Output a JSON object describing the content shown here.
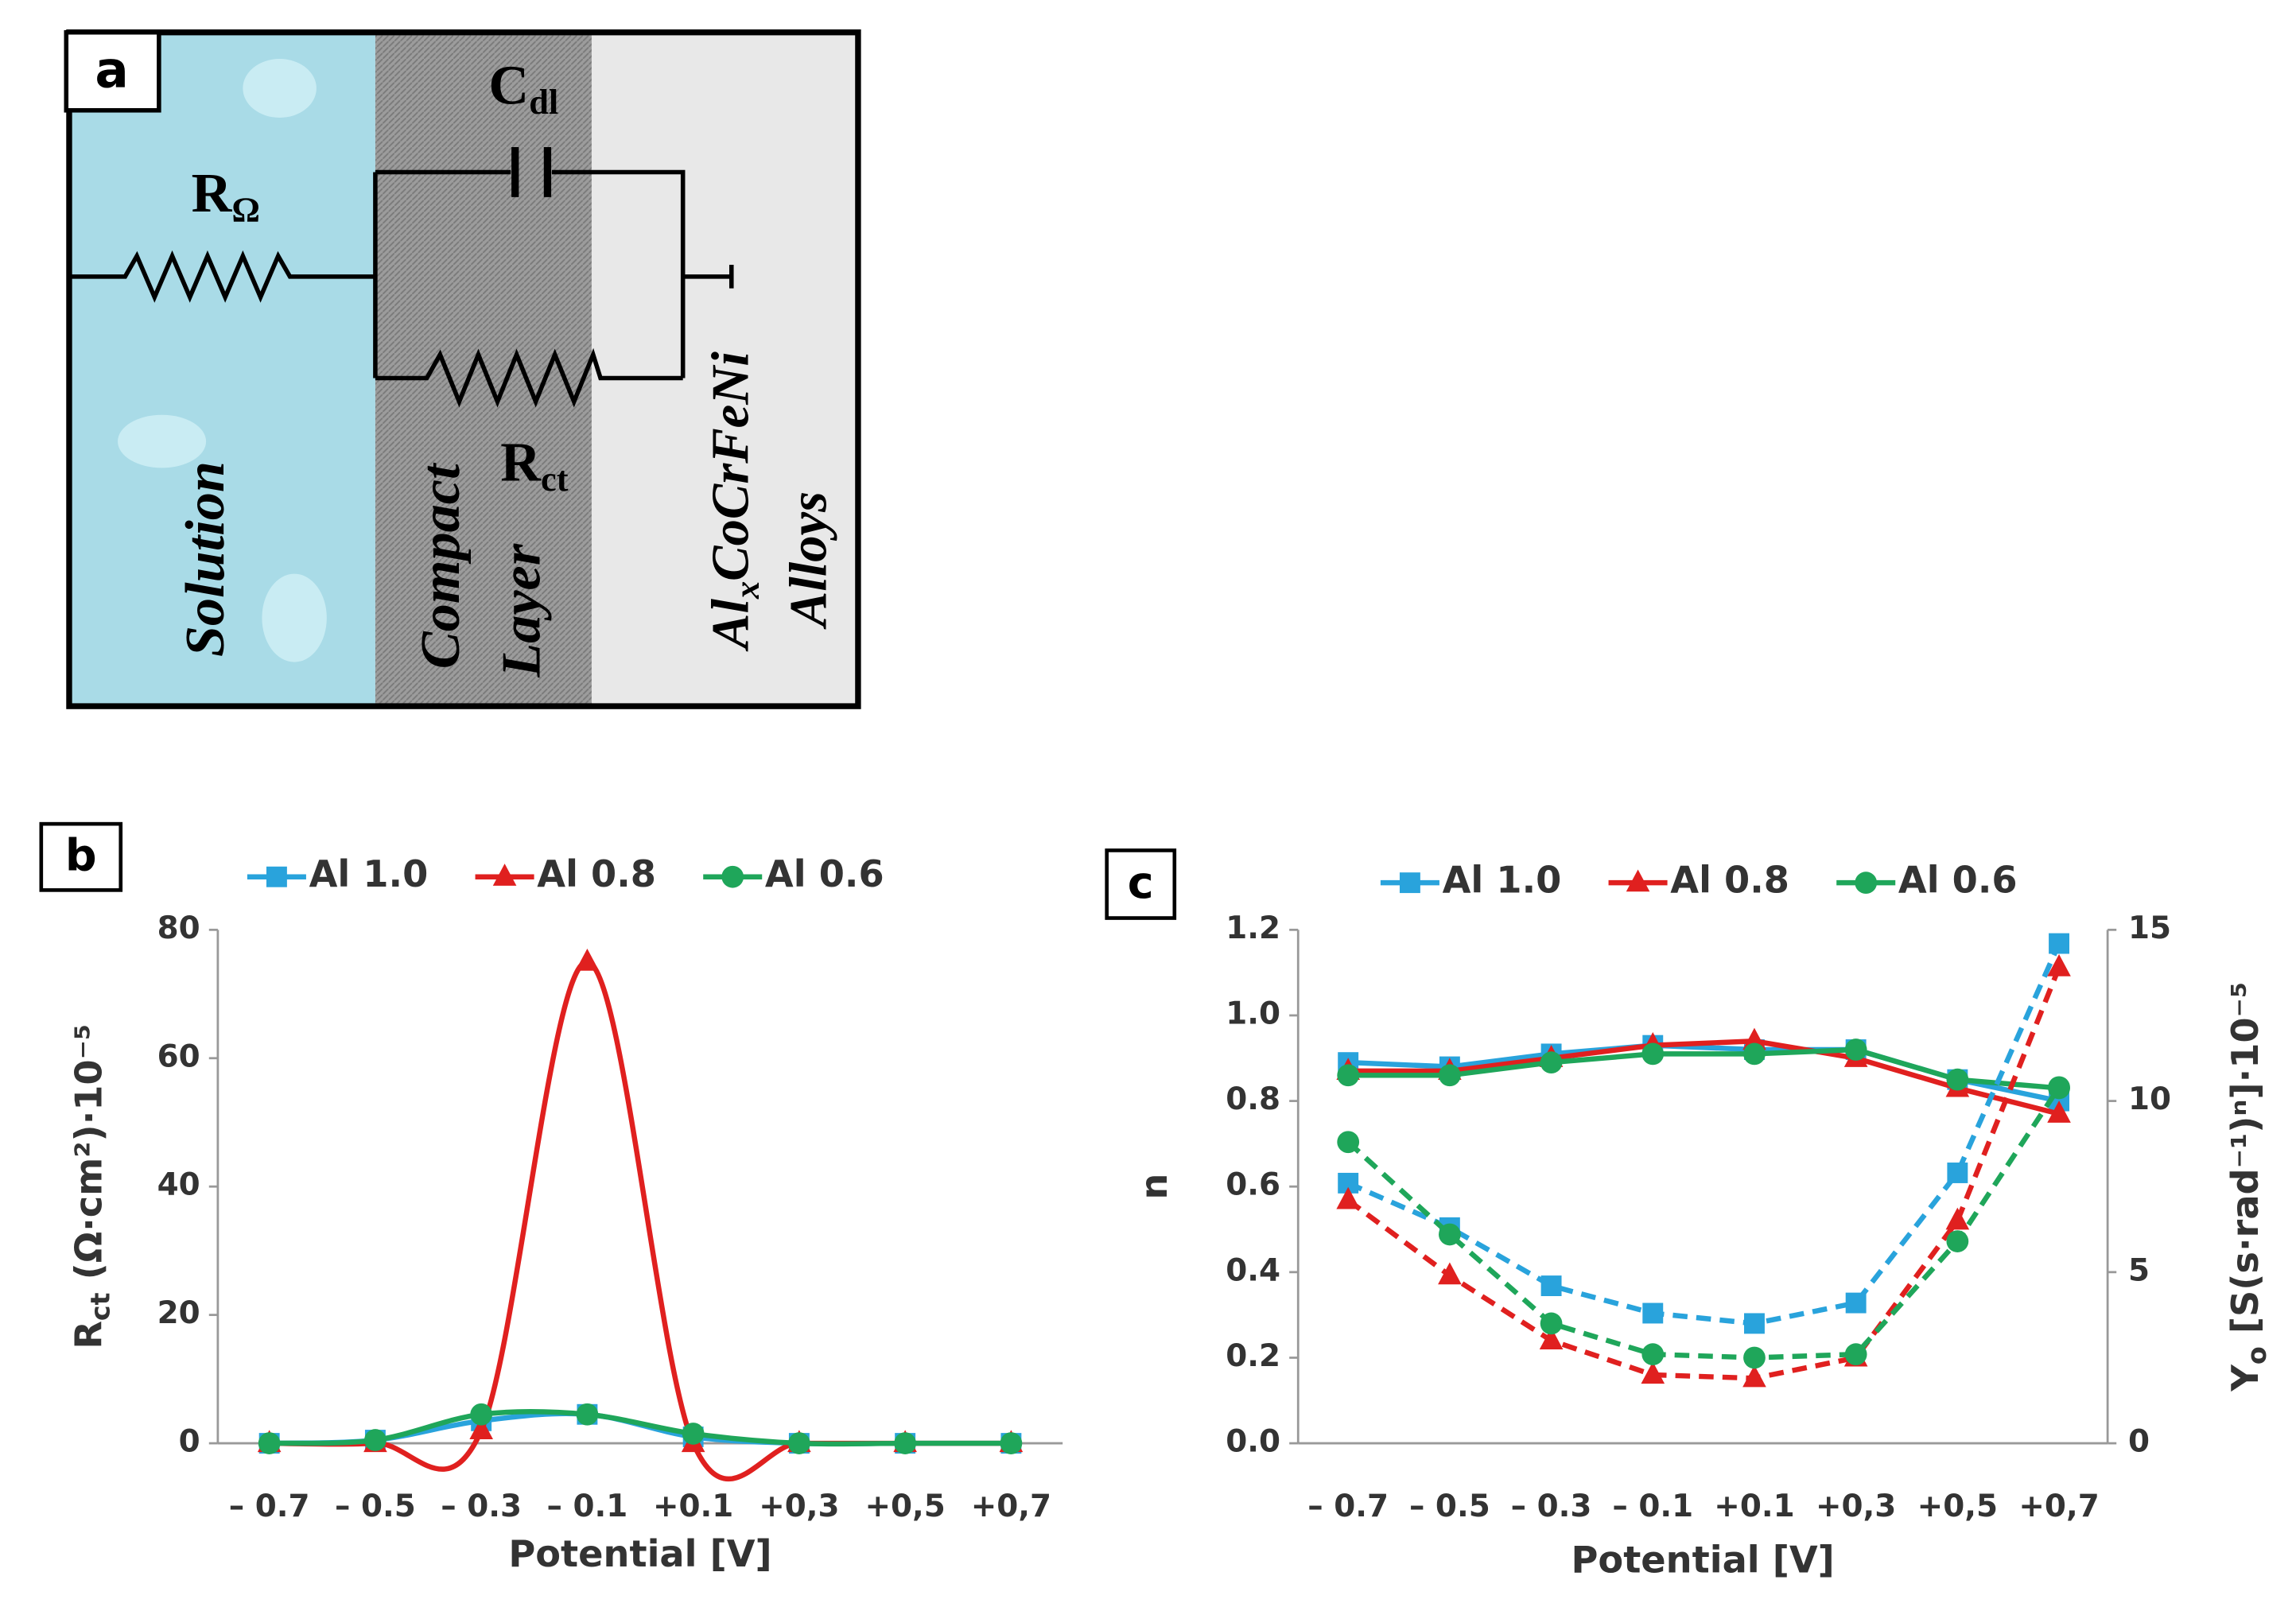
{
  "panel_a": {
    "label": "a",
    "cdl": {
      "main": "C",
      "sub": "dl"
    },
    "rohm": {
      "main": "R",
      "sub": "Ω"
    },
    "rct": {
      "main": "R",
      "sub": "ct"
    },
    "solution": "Solution",
    "compact": [
      "Compact",
      "Layer"
    ],
    "alloy": {
      "main": "Al",
      "sub": "x",
      "rest": "CoCrFeNi",
      "line2": "Alloys"
    }
  },
  "chart_data": [
    {
      "type": "line",
      "label": "b",
      "smooth": true,
      "categories": [
        "– 0.7",
        "– 0.5",
        "– 0.3",
        "– 0.1",
        "+0.1",
        "+0,3",
        "+0,5",
        "+0,7"
      ],
      "xlabel": "Potential [V]",
      "ylabel": {
        "main": "R",
        "sub": "ct",
        "rest": " (Ω·cm²)·10⁻⁵"
      },
      "ylim": [
        0,
        80
      ],
      "yticks": [
        0,
        20,
        40,
        60,
        80
      ],
      "series": [
        {
          "name": "Al 1.0",
          "color": "#29a3dc",
          "marker": "square",
          "values": [
            0,
            0.5,
            3.5,
            4.5,
            1,
            0,
            0,
            0
          ]
        },
        {
          "name": "Al 0.8",
          "color": "#e0201f",
          "marker": "triangle",
          "values": [
            0,
            0,
            2,
            75,
            0,
            0,
            0,
            0
          ]
        },
        {
          "name": "Al 0.6",
          "color": "#1fa65a",
          "marker": "circle",
          "values": [
            0,
            0.5,
            4.5,
            4.5,
            1.5,
            0,
            0,
            0
          ]
        }
      ]
    },
    {
      "type": "line",
      "label": "c",
      "smooth": false,
      "categories": [
        "– 0.7",
        "– 0.5",
        "– 0.3",
        "– 0.1",
        "+0.1",
        "+0,3",
        "+0,5",
        "+0,7"
      ],
      "xlabel": "Potential [V]",
      "ylabel": "n",
      "y2label": {
        "main": "Y",
        "sub": "o",
        "rest": " [S(s·rad⁻¹)ⁿ]·10⁻⁵"
      },
      "ylim": [
        0,
        1.2
      ],
      "yticks": [
        {
          "value": 0,
          "label": "0.0"
        },
        0.2,
        0.4,
        0.6,
        0.8,
        {
          "value": 1,
          "label": "1.0"
        },
        1.2
      ],
      "y2lim": [
        0,
        15
      ],
      "y2ticks": [
        0,
        5,
        10,
        15
      ],
      "series": [
        {
          "name": "Al 1.0",
          "color": "#29a3dc",
          "marker": "square",
          "values": [
            0.89,
            0.88,
            0.91,
            0.93,
            0.92,
            0.92,
            0.85,
            0.8
          ]
        },
        {
          "name": "Al 0.8",
          "color": "#e0201f",
          "marker": "triangle",
          "values": [
            0.87,
            0.87,
            0.9,
            0.93,
            0.94,
            0.9,
            0.83,
            0.77
          ]
        },
        {
          "name": "Al 0.6",
          "color": "#1fa65a",
          "marker": "circle",
          "values": [
            0.86,
            0.86,
            0.89,
            0.91,
            0.91,
            0.92,
            0.85,
            0.83
          ]
        },
        {
          "name": "Al 1.0",
          "color": "#29a3dc",
          "marker": "square",
          "axis": "y2",
          "dash": true,
          "values": [
            7.6,
            6.3,
            4.6,
            3.8,
            3.5,
            4.1,
            7.9,
            14.6
          ]
        },
        {
          "name": "Al 0.8",
          "color": "#e0201f",
          "marker": "triangle",
          "axis": "y2",
          "dash": true,
          "values": [
            7.1,
            4.9,
            3.0,
            2.0,
            1.9,
            2.5,
            6.5,
            13.9
          ]
        },
        {
          "name": "Al 0.6",
          "color": "#1fa65a",
          "marker": "circle",
          "axis": "y2",
          "dash": true,
          "values": [
            8.8,
            6.1,
            3.5,
            2.6,
            2.5,
            2.6,
            5.9,
            10.4
          ]
        }
      ]
    }
  ]
}
